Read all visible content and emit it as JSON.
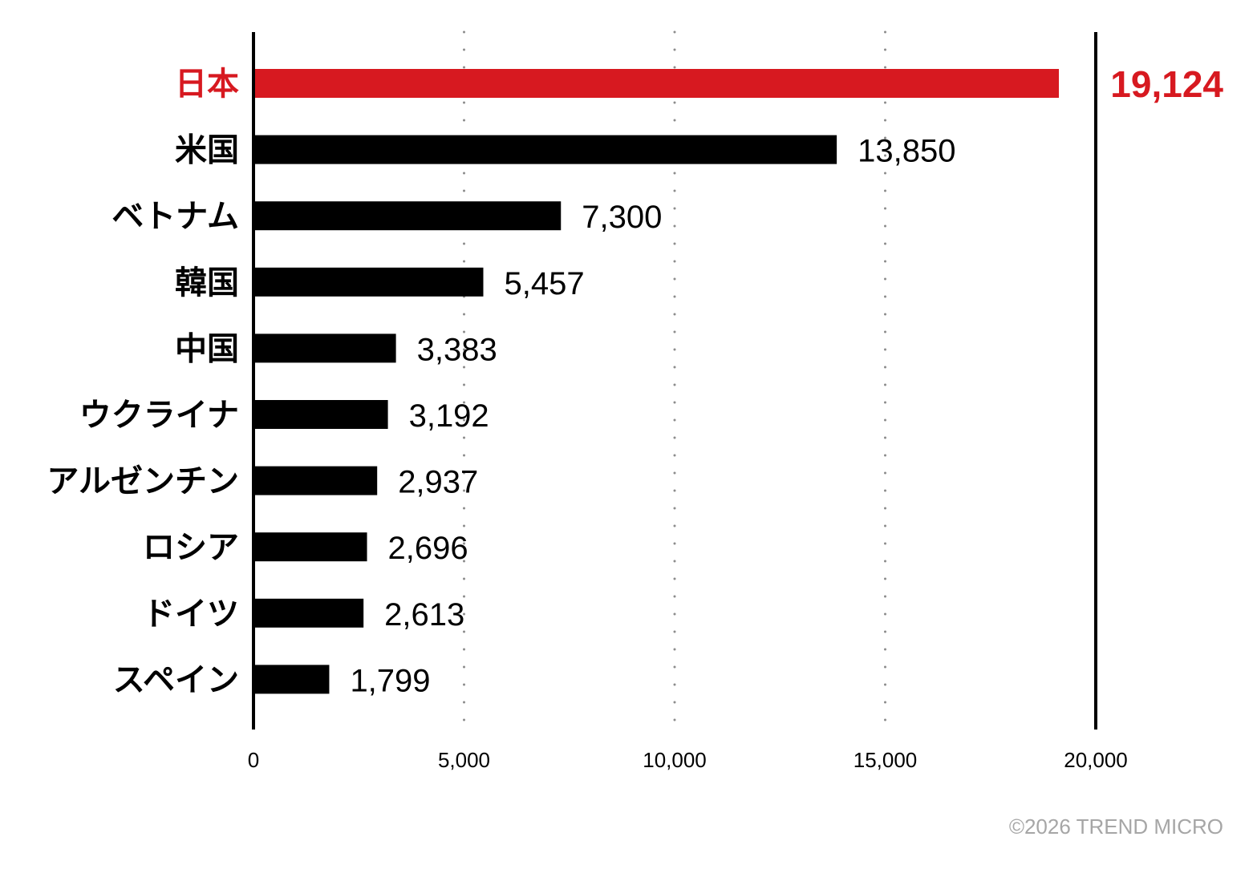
{
  "chart_data": {
    "type": "bar",
    "orientation": "horizontal",
    "categories": [
      "日本",
      "米国",
      "ベトナム",
      "韓国",
      "中国",
      "ウクライナ",
      "アルゼンチン",
      "ロシア",
      "ドイツ",
      "スペイン"
    ],
    "values": [
      19124,
      13850,
      7300,
      5457,
      3383,
      3192,
      2937,
      2696,
      2613,
      1799
    ],
    "value_labels": [
      "19,124",
      "13,850",
      "7,300",
      "5,457",
      "3,383",
      "3,192",
      "2,937",
      "2,696",
      "2,613",
      "1,799"
    ],
    "highlight_index": 0,
    "xlim": [
      0,
      20000
    ],
    "xticks": [
      0,
      5000,
      10000,
      15000,
      20000
    ],
    "xtick_labels": [
      "0",
      "5,000",
      "10,000",
      "15,000",
      "20,000"
    ],
    "grid": "vertical dotted",
    "title": "",
    "xlabel": "",
    "ylabel": ""
  },
  "colors": {
    "highlight": "#d71920",
    "bar": "#000000",
    "grid": "#8c8c8c",
    "credit": "#a6a6a6"
  },
  "credit": "©2026 TREND MICRO"
}
